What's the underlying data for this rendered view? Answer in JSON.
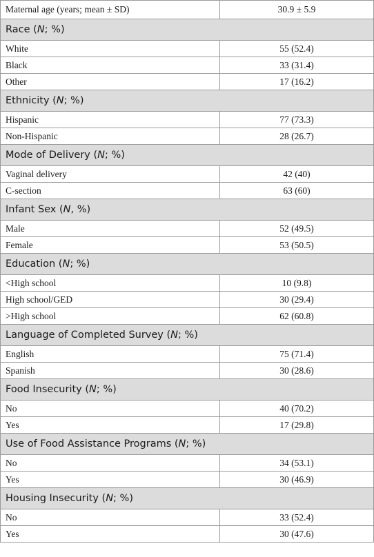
{
  "table": {
    "first_row": [
      "Maternal age (years; mean ± SD)",
      "30.9 ± 5.9"
    ],
    "sections": [
      {
        "title": {
          "before": "Race (",
          "italic": "N",
          "after": "; %)"
        },
        "rows": [
          [
            "White",
            "55 (52.4)"
          ],
          [
            "Black",
            "33 (31.4)"
          ],
          [
            "Other",
            "17 (16.2)"
          ]
        ]
      },
      {
        "title": {
          "before": "Ethnicity (",
          "italic": "N",
          "after": "; %)"
        },
        "rows": [
          [
            "Hispanic",
            "77 (73.3)"
          ],
          [
            "Non-Hispanic",
            "28 (26.7)"
          ]
        ]
      },
      {
        "title": {
          "before": "Mode of Delivery (",
          "italic": "N",
          "after": "; %)"
        },
        "rows": [
          [
            "Vaginal delivery",
            "42 (40)"
          ],
          [
            "C-section",
            "63 (60)"
          ]
        ]
      },
      {
        "title": {
          "before": "Infant Sex (",
          "italic": "N",
          "after": ", %)"
        },
        "rows": [
          [
            "Male",
            "52 (49.5)"
          ],
          [
            "Female",
            "53 (50.5)"
          ]
        ]
      },
      {
        "title": {
          "before": "Education (",
          "italic": "N",
          "after": "; %)"
        },
        "rows": [
          [
            "<High school",
            "10 (9.8)"
          ],
          [
            "High school/GED",
            "30 (29.4)"
          ],
          [
            ">High school",
            "62 (60.8)"
          ]
        ]
      },
      {
        "title": {
          "before": "Language of Completed Survey (",
          "italic": "N",
          "after": "; %)"
        },
        "rows": [
          [
            "English",
            "75 (71.4)"
          ],
          [
            "Spanish",
            "30 (28.6)"
          ]
        ]
      },
      {
        "title": {
          "before": "Food Insecurity (",
          "italic": "N",
          "after": "; %)"
        },
        "rows": [
          [
            "No",
            "40 (70.2)"
          ],
          [
            "Yes",
            "17 (29.8)"
          ]
        ]
      },
      {
        "title": {
          "before": "Use of Food Assistance Programs (",
          "italic": "N",
          "after": "; %)"
        },
        "rows": [
          [
            "No",
            "34 (53.1)"
          ],
          [
            "Yes",
            "30 (46.9)"
          ]
        ]
      },
      {
        "title": {
          "before": "Housing Insecurity (",
          "italic": "N",
          "after": "; %)"
        },
        "rows": [
          [
            "No",
            "33 (52.4)"
          ],
          [
            "Yes",
            "30 (47.6)"
          ]
        ]
      }
    ]
  }
}
